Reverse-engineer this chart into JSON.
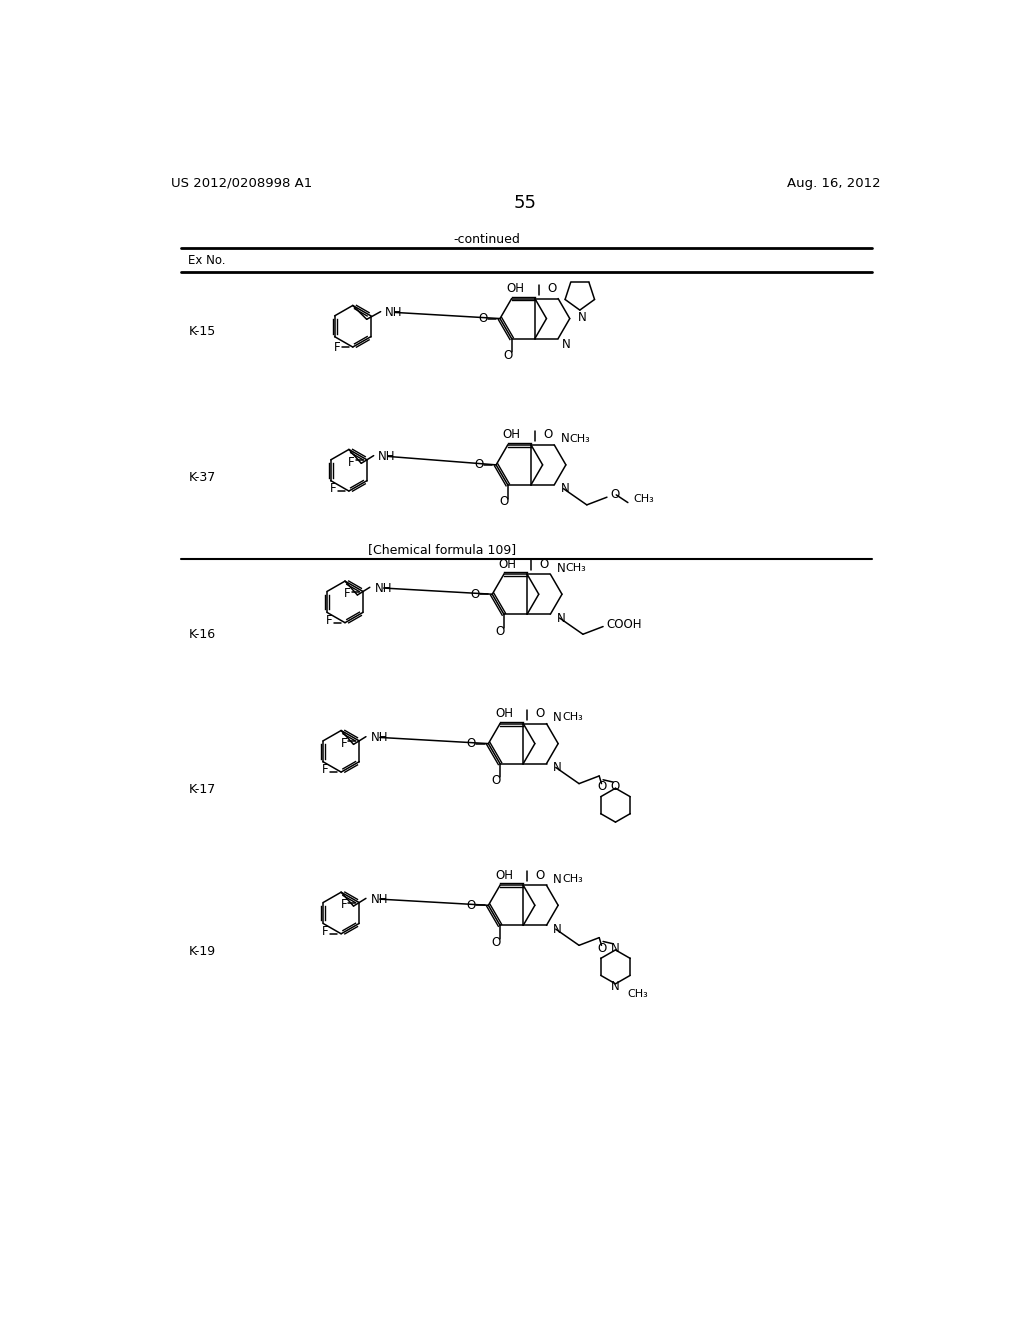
{
  "page_number": "55",
  "patent_number": "US 2012/0208998 A1",
  "patent_date": "Aug. 16, 2012",
  "continued_label": "-continued",
  "table_header": "Ex No.",
  "chemical_formula_label": "[Chemical formula 109]",
  "entries": [
    "K-15",
    "K-37",
    "K-16",
    "K-17",
    "K-19"
  ],
  "background_color": "#ffffff",
  "text_color": "#000000"
}
